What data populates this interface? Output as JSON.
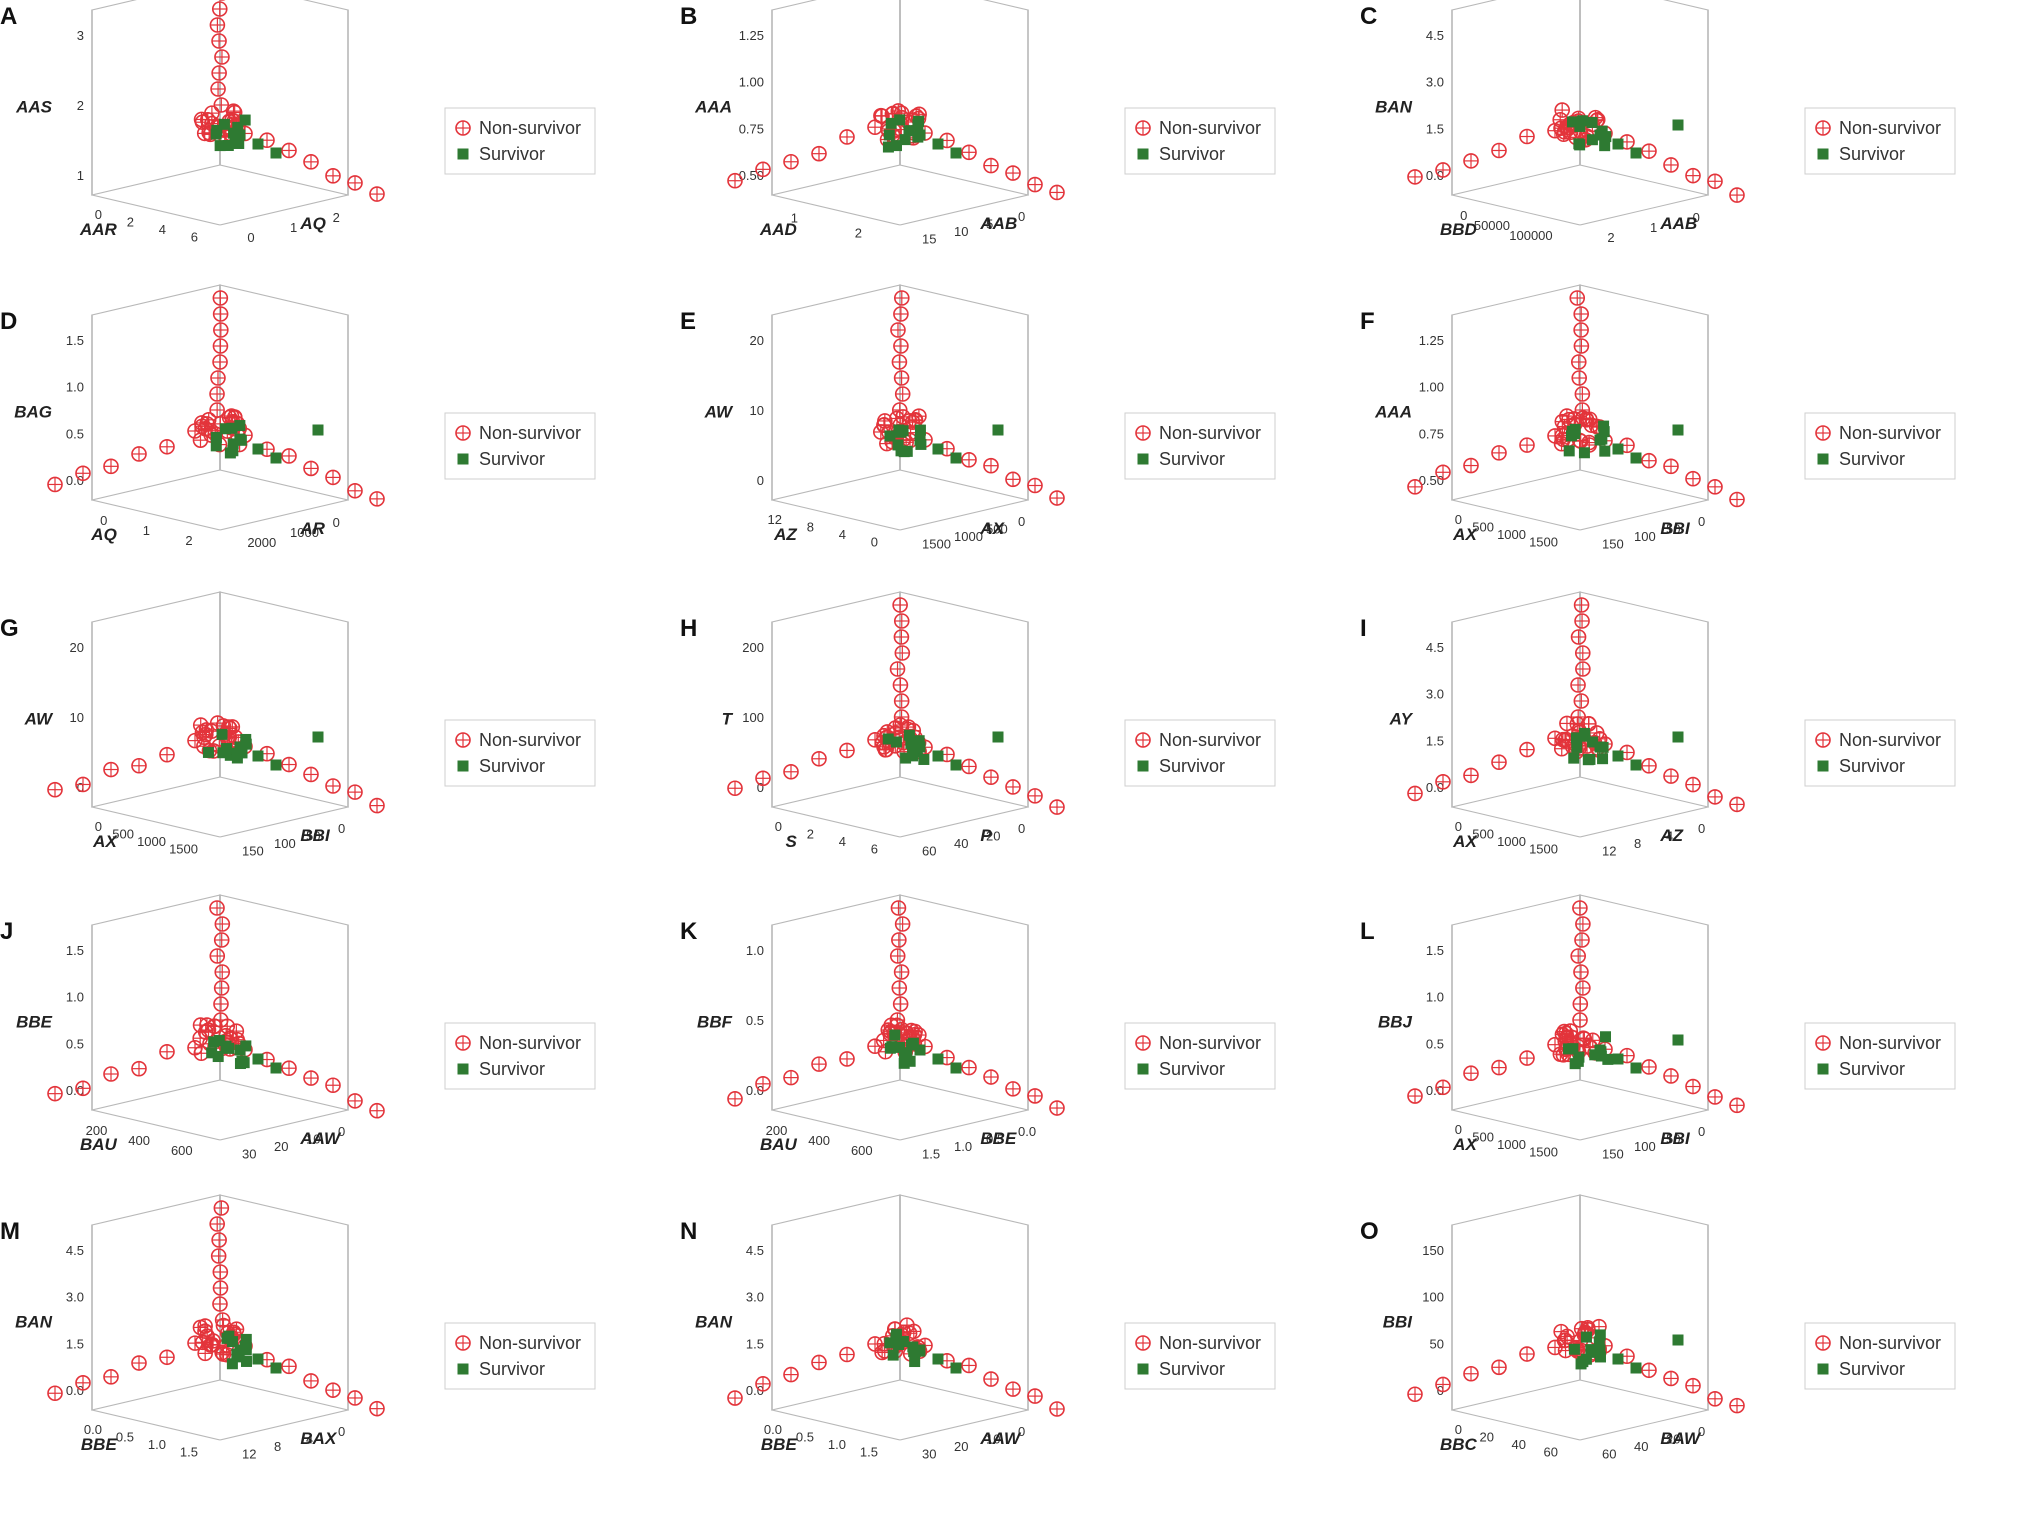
{
  "legend_labels": {
    "nonsurvivor": "Non-survivor",
    "survivor": "Survivor"
  },
  "colors": {
    "nonsurvivor": "#e3343b",
    "survivor": "#2e7a32",
    "frame": "#b8b8b8"
  },
  "chart_data": [
    {
      "type": "scatter3d",
      "panel": "A",
      "xlabel": "AQ",
      "ylabel": "AAR",
      "zlabel": "AAS",
      "xticks": [
        "2",
        "1",
        "0"
      ],
      "yticks": [
        "0",
        "2",
        "4",
        "6"
      ],
      "zticks": [
        "3",
        "2",
        "1"
      ],
      "pattern": "L",
      "legend": "right",
      "outlier": false
    },
    {
      "type": "scatter3d",
      "panel": "B",
      "xlabel": "AAB",
      "ylabel": "AAD",
      "zlabel": "AAA",
      "xticks": [
        "0",
        "5",
        "10",
        "15"
      ],
      "yticks": [
        "1",
        "2"
      ],
      "zticks": [
        "1.25",
        "1.00",
        "0.75",
        "0.50"
      ],
      "pattern": "arc",
      "legend": "right",
      "outlier": false
    },
    {
      "type": "scatter3d",
      "panel": "C",
      "xlabel": "AAB",
      "ylabel": "BBD",
      "zlabel": "BAN",
      "xticks": [
        "0",
        "1",
        "2"
      ],
      "yticks": [
        "0",
        "50000",
        "100000"
      ],
      "zticks": [
        "4.5",
        "3.0",
        "1.5",
        "0.0"
      ],
      "pattern": "arc",
      "legend": "right",
      "outlier": true
    },
    {
      "type": "scatter3d",
      "panel": "D",
      "xlabel": "AR",
      "ylabel": "AQ",
      "zlabel": "BAG",
      "xticks": [
        "0",
        "1000",
        "2000"
      ],
      "yticks": [
        "0",
        "1",
        "2"
      ],
      "zticks": [
        "1.5",
        "1.0",
        "0.5",
        "0.0"
      ],
      "pattern": "Y",
      "legend": "right",
      "outlier": true
    },
    {
      "type": "scatter3d",
      "panel": "E",
      "xlabel": "AX",
      "ylabel": "AZ",
      "zlabel": "AW",
      "xticks": [
        "0",
        "500",
        "1000",
        "1500"
      ],
      "yticks": [
        "12",
        "8",
        "4",
        "0"
      ],
      "zticks": [
        "20",
        "10",
        "0"
      ],
      "pattern": "L",
      "legend": "right",
      "outlier": true
    },
    {
      "type": "scatter3d",
      "panel": "F",
      "xlabel": "BBI",
      "ylabel": "AX",
      "zlabel": "AAA",
      "xticks": [
        "0",
        "50",
        "100",
        "150"
      ],
      "yticks": [
        "0",
        "500",
        "1000",
        "1500"
      ],
      "zticks": [
        "1.25",
        "1.00",
        "0.75",
        "0.50"
      ],
      "pattern": "Y",
      "legend": "right",
      "outlier": true
    },
    {
      "type": "scatter3d",
      "panel": "G",
      "xlabel": "BBI",
      "ylabel": "AX",
      "zlabel": "AW",
      "xticks": [
        "0",
        "50",
        "100",
        "150"
      ],
      "yticks": [
        "0",
        "500",
        "1000",
        "1500"
      ],
      "zticks": [
        "20",
        "10",
        "0"
      ],
      "pattern": "arc",
      "legend": "right",
      "outlier": true
    },
    {
      "type": "scatter3d",
      "panel": "H",
      "xlabel": "P",
      "ylabel": "S",
      "zlabel": "T",
      "xticks": [
        "0",
        "20",
        "40",
        "60"
      ],
      "yticks": [
        "0",
        "2",
        "4",
        "6"
      ],
      "zticks": [
        "200",
        "100",
        "0"
      ],
      "pattern": "Y",
      "legend": "right",
      "outlier": true
    },
    {
      "type": "scatter3d",
      "panel": "I",
      "xlabel": "AZ",
      "ylabel": "AX",
      "zlabel": "AY",
      "xticks": [
        "0",
        "4",
        "8",
        "12"
      ],
      "yticks": [
        "0",
        "500",
        "1000",
        "1500"
      ],
      "zticks": [
        "4.5",
        "3.0",
        "1.5",
        "0.0"
      ],
      "pattern": "Y",
      "legend": "right",
      "outlier": true
    },
    {
      "type": "scatter3d",
      "panel": "J",
      "xlabel": "AAW",
      "ylabel": "BAU",
      "zlabel": "BBE",
      "xticks": [
        "0",
        "10",
        "20",
        "30"
      ],
      "yticks": [
        "200",
        "400",
        "600"
      ],
      "zticks": [
        "1.5",
        "1.0",
        "0.5",
        "0.0"
      ],
      "pattern": "Y",
      "legend": "right",
      "outlier": false
    },
    {
      "type": "scatter3d",
      "panel": "K",
      "xlabel": "BBE",
      "ylabel": "BAU",
      "zlabel": "BBF",
      "xticks": [
        "0.0",
        "0.5",
        "1.0",
        "1.5"
      ],
      "yticks": [
        "200",
        "400",
        "600"
      ],
      "zticks": [
        "1.0",
        "0.5",
        "0.0"
      ],
      "pattern": "Y",
      "legend": "right",
      "outlier": false
    },
    {
      "type": "scatter3d",
      "panel": "L",
      "xlabel": "BBI",
      "ylabel": "AX",
      "zlabel": "BBJ",
      "xticks": [
        "0",
        "50",
        "100",
        "150"
      ],
      "yticks": [
        "0",
        "500",
        "1000",
        "1500"
      ],
      "zticks": [
        "1.5",
        "1.0",
        "0.5",
        "0.0"
      ],
      "pattern": "Y",
      "legend": "right",
      "outlier": true
    },
    {
      "type": "scatter3d",
      "panel": "M",
      "xlabel": "BAX",
      "ylabel": "BBE",
      "zlabel": "BAN",
      "xticks": [
        "0",
        "4",
        "8",
        "12"
      ],
      "yticks": [
        "0.0",
        "0.5",
        "1.0",
        "1.5"
      ],
      "zticks": [
        "4.5",
        "3.0",
        "1.5",
        "0.0"
      ],
      "pattern": "Y",
      "legend": "right",
      "outlier": false
    },
    {
      "type": "scatter3d",
      "panel": "N",
      "xlabel": "AAW",
      "ylabel": "BBE",
      "zlabel": "BAN",
      "xticks": [
        "0",
        "10",
        "20",
        "30"
      ],
      "yticks": [
        "0.0",
        "0.5",
        "1.0",
        "1.5"
      ],
      "zticks": [
        "4.5",
        "3.0",
        "1.5",
        "0.0"
      ],
      "pattern": "arc",
      "legend": "right",
      "outlier": false
    },
    {
      "type": "scatter3d",
      "panel": "O",
      "xlabel": "BAW",
      "ylabel": "BBC",
      "zlabel": "BBI",
      "xticks": [
        "0",
        "20",
        "40",
        "60"
      ],
      "yticks": [
        "0",
        "20",
        "40",
        "60"
      ],
      "zticks": [
        "150",
        "100",
        "50",
        "0"
      ],
      "pattern": "diag",
      "legend": "right",
      "outlier": true
    }
  ]
}
